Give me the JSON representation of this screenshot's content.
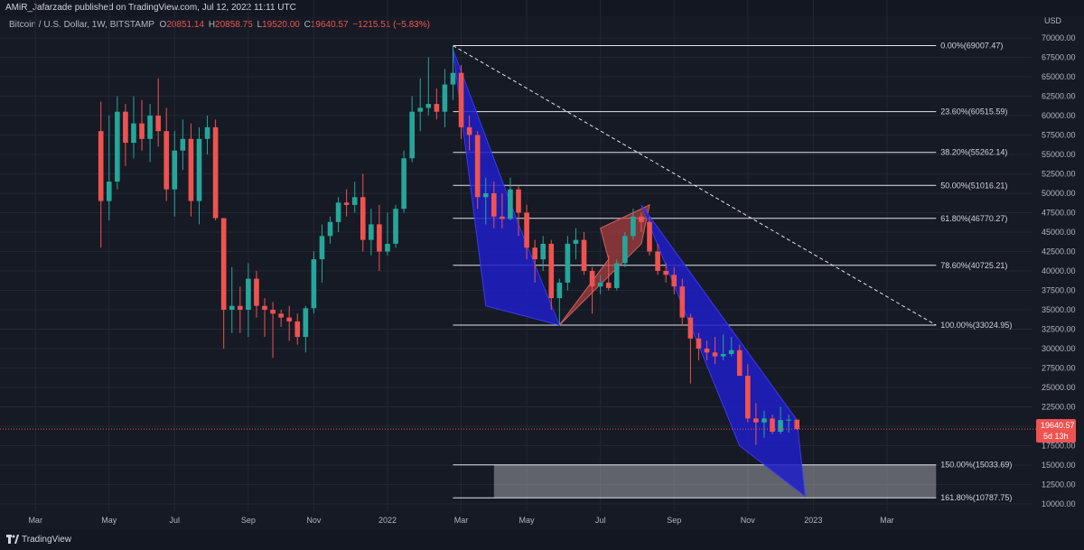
{
  "header": {
    "published_by": "AMiR_Jafarzade published on TradingView.com, Jul 12, 2022 11:11 UTC"
  },
  "symbol": {
    "name": "Bitcoin / U.S. Dollar, 1W, BITSTAMP",
    "open_label": "O",
    "open": "20851.14",
    "high_label": "H",
    "high": "20858.75",
    "low_label": "L",
    "low": "19520.00",
    "close_label": "C",
    "close": "19640.57",
    "change": "−1215.51 (−5.83%)"
  },
  "price_tag": {
    "price": "19640.57",
    "countdown": "5d 13h"
  },
  "footer": {
    "brand": "TradingView"
  },
  "colors": {
    "up": "#26a69a",
    "down": "#ef5350",
    "background": "#161a25",
    "grid": "#232733",
    "fib_line": "#e0e3eb",
    "down_arrow": "#1e1ec8",
    "up_arrow": "#b04040"
  },
  "chart_data": {
    "type": "candlestick",
    "y_unit": "USD",
    "ylim": [
      10000,
      70000
    ],
    "yticks": [
      10000,
      12500,
      15000,
      17500,
      20000,
      22500,
      25000,
      27500,
      30000,
      32500,
      35000,
      37500,
      40000,
      42500,
      45000,
      47500,
      50000,
      52500,
      55000,
      57500,
      60000,
      62500,
      65000,
      67500,
      70000
    ],
    "yticks_labels": [
      "10000.00",
      "12500.00",
      "15000.00",
      "17500.00",
      "20000.00",
      "22500.00",
      "25000.00",
      "27500.00",
      "30000.00",
      "32500.00",
      "35000.00",
      "37500.00",
      "40000.00",
      "42500.00",
      "45000.00",
      "47500.00",
      "50000.00",
      "52500.00",
      "55000.00",
      "57500.00",
      "60000.00",
      "62500.00",
      "65000.00",
      "67500.00",
      "70000.00"
    ],
    "x_ticks": [
      "Mar",
      "May",
      "Jul",
      "Sep",
      "Nov",
      "2022",
      "Mar",
      "May",
      "Jul",
      "Sep",
      "Nov",
      "2023",
      "Mar"
    ],
    "x_range_weeks": [
      -11,
      113
    ],
    "x_ticks_week": [
      -8,
      1,
      9,
      18,
      26,
      35,
      44,
      52,
      61,
      70,
      79,
      87,
      96
    ],
    "candles": [
      {
        "w": 0,
        "o": 58000,
        "h": 61800,
        "l": 43000,
        "c": 49000
      },
      {
        "w": 1,
        "o": 49000,
        "h": 60000,
        "l": 46500,
        "c": 51500
      },
      {
        "w": 2,
        "o": 51500,
        "h": 62500,
        "l": 50500,
        "c": 60500
      },
      {
        "w": 3,
        "o": 60500,
        "h": 61500,
        "l": 53500,
        "c": 56500
      },
      {
        "w": 4,
        "o": 56500,
        "h": 62500,
        "l": 54500,
        "c": 59000
      },
      {
        "w": 5,
        "o": 59000,
        "h": 62000,
        "l": 55500,
        "c": 57000
      },
      {
        "w": 6,
        "o": 57000,
        "h": 61500,
        "l": 54000,
        "c": 60000
      },
      {
        "w": 7,
        "o": 60000,
        "h": 64800,
        "l": 56000,
        "c": 58000
      },
      {
        "w": 8,
        "o": 58000,
        "h": 61000,
        "l": 49000,
        "c": 50500
      },
      {
        "w": 9,
        "o": 50500,
        "h": 58000,
        "l": 47000,
        "c": 55500
      },
      {
        "w": 10,
        "o": 55500,
        "h": 59500,
        "l": 53000,
        "c": 57000
      },
      {
        "w": 11,
        "o": 57000,
        "h": 59000,
        "l": 47000,
        "c": 49000
      },
      {
        "w": 12,
        "o": 49000,
        "h": 58500,
        "l": 46000,
        "c": 57000
      },
      {
        "w": 13,
        "o": 57000,
        "h": 60000,
        "l": 55000,
        "c": 58500
      },
      {
        "w": 14,
        "o": 58500,
        "h": 59500,
        "l": 46500,
        "c": 46800
      },
      {
        "w": 15,
        "o": 46800,
        "h": 46500,
        "l": 30000,
        "c": 35000
      },
      {
        "w": 16,
        "o": 35000,
        "h": 40500,
        "l": 32000,
        "c": 35500
      },
      {
        "w": 17,
        "o": 35500,
        "h": 38000,
        "l": 32000,
        "c": 35000
      },
      {
        "w": 18,
        "o": 35000,
        "h": 41000,
        "l": 31500,
        "c": 39000
      },
      {
        "w": 19,
        "o": 39000,
        "h": 40000,
        "l": 34000,
        "c": 35500
      },
      {
        "w": 20,
        "o": 35500,
        "h": 36500,
        "l": 31500,
        "c": 35000
      },
      {
        "w": 21,
        "o": 35000,
        "h": 36000,
        "l": 28800,
        "c": 34500
      },
      {
        "w": 22,
        "o": 34500,
        "h": 35000,
        "l": 32800,
        "c": 34000
      },
      {
        "w": 23,
        "o": 34000,
        "h": 35500,
        "l": 31000,
        "c": 33500
      },
      {
        "w": 24,
        "o": 33500,
        "h": 34500,
        "l": 30500,
        "c": 31500
      },
      {
        "w": 25,
        "o": 31500,
        "h": 35500,
        "l": 29500,
        "c": 35200
      },
      {
        "w": 26,
        "o": 35200,
        "h": 42500,
        "l": 34500,
        "c": 41500
      },
      {
        "w": 27,
        "o": 41500,
        "h": 46000,
        "l": 38500,
        "c": 44500
      },
      {
        "w": 28,
        "o": 44500,
        "h": 47000,
        "l": 43500,
        "c": 46300
      },
      {
        "w": 29,
        "o": 46300,
        "h": 49500,
        "l": 45000,
        "c": 48800
      },
      {
        "w": 30,
        "o": 48800,
        "h": 50500,
        "l": 47000,
        "c": 48500
      },
      {
        "w": 31,
        "o": 48500,
        "h": 51500,
        "l": 47500,
        "c": 49500
      },
      {
        "w": 32,
        "o": 49500,
        "h": 52500,
        "l": 42500,
        "c": 44000
      },
      {
        "w": 33,
        "o": 44000,
        "h": 48000,
        "l": 42000,
        "c": 46000
      },
      {
        "w": 34,
        "o": 46000,
        "h": 48500,
        "l": 40000,
        "c": 42500
      },
      {
        "w": 35,
        "o": 42500,
        "h": 47500,
        "l": 42000,
        "c": 43500
      },
      {
        "w": 36,
        "o": 43500,
        "h": 48500,
        "l": 43000,
        "c": 48000
      },
      {
        "w": 37,
        "o": 48000,
        "h": 55500,
        "l": 47500,
        "c": 54500
      },
      {
        "w": 38,
        "o": 54500,
        "h": 62500,
        "l": 54000,
        "c": 60500
      },
      {
        "w": 39,
        "o": 60500,
        "h": 64800,
        "l": 58000,
        "c": 61000
      },
      {
        "w": 40,
        "o": 61000,
        "h": 67500,
        "l": 60000,
        "c": 61500
      },
      {
        "w": 41,
        "o": 61500,
        "h": 63500,
        "l": 59500,
        "c": 60500
      },
      {
        "w": 42,
        "o": 60500,
        "h": 66000,
        "l": 58500,
        "c": 64000
      },
      {
        "w": 43,
        "o": 64000,
        "h": 69000,
        "l": 62000,
        "c": 65500
      },
      {
        "w": 44,
        "o": 65500,
        "h": 66500,
        "l": 57000,
        "c": 58500
      },
      {
        "w": 45,
        "o": 58500,
        "h": 60000,
        "l": 55500,
        "c": 57500
      },
      {
        "w": 46,
        "o": 57500,
        "h": 58000,
        "l": 48000,
        "c": 49500
      },
      {
        "w": 47,
        "o": 49500,
        "h": 52000,
        "l": 46000,
        "c": 50000
      },
      {
        "w": 48,
        "o": 50000,
        "h": 51500,
        "l": 45500,
        "c": 47000
      },
      {
        "w": 49,
        "o": 47000,
        "h": 50000,
        "l": 45500,
        "c": 46700
      },
      {
        "w": 50,
        "o": 46700,
        "h": 52000,
        "l": 46500,
        "c": 50500
      },
      {
        "w": 51,
        "o": 50500,
        "h": 51000,
        "l": 44500,
        "c": 47500
      },
      {
        "w": 52,
        "o": 47500,
        "h": 48500,
        "l": 41500,
        "c": 43000
      },
      {
        "w": 53,
        "o": 43000,
        "h": 44000,
        "l": 38500,
        "c": 41500
      },
      {
        "w": 54,
        "o": 41500,
        "h": 44500,
        "l": 40000,
        "c": 43500
      },
      {
        "w": 55,
        "o": 43500,
        "h": 44000,
        "l": 35000,
        "c": 36500
      },
      {
        "w": 56,
        "o": 36500,
        "h": 39000,
        "l": 33000,
        "c": 38500
      },
      {
        "w": 57,
        "o": 38500,
        "h": 44500,
        "l": 37500,
        "c": 43500
      },
      {
        "w": 58,
        "o": 43500,
        "h": 45500,
        "l": 41500,
        "c": 44000
      },
      {
        "w": 59,
        "o": 44000,
        "h": 45000,
        "l": 39500,
        "c": 40000
      },
      {
        "w": 60,
        "o": 40000,
        "h": 40500,
        "l": 34500,
        "c": 38000
      },
      {
        "w": 61,
        "o": 38000,
        "h": 39500,
        "l": 37000,
        "c": 38500
      },
      {
        "w": 62,
        "o": 38500,
        "h": 42000,
        "l": 37500,
        "c": 37800
      },
      {
        "w": 63,
        "o": 37800,
        "h": 41500,
        "l": 37500,
        "c": 41000
      },
      {
        "w": 64,
        "o": 41000,
        "h": 45000,
        "l": 40500,
        "c": 44500
      },
      {
        "w": 65,
        "o": 44500,
        "h": 48000,
        "l": 44000,
        "c": 47000
      },
      {
        "w": 66,
        "o": 47000,
        "h": 47500,
        "l": 45000,
        "c": 46300
      },
      {
        "w": 67,
        "o": 46300,
        "h": 47000,
        "l": 42000,
        "c": 42500
      },
      {
        "w": 68,
        "o": 42500,
        "h": 43500,
        "l": 39500,
        "c": 40000
      },
      {
        "w": 69,
        "o": 40000,
        "h": 41000,
        "l": 38500,
        "c": 39500
      },
      {
        "w": 70,
        "o": 39500,
        "h": 40500,
        "l": 37000,
        "c": 38000
      },
      {
        "w": 71,
        "o": 38000,
        "h": 39000,
        "l": 33000,
        "c": 34000
      },
      {
        "w": 72,
        "o": 34000,
        "h": 34500,
        "l": 25500,
        "c": 31300
      },
      {
        "w": 73,
        "o": 31300,
        "h": 32000,
        "l": 28500,
        "c": 30000
      },
      {
        "w": 74,
        "o": 30000,
        "h": 31000,
        "l": 28500,
        "c": 29500
      },
      {
        "w": 75,
        "o": 29500,
        "h": 31500,
        "l": 28000,
        "c": 29000
      },
      {
        "w": 76,
        "o": 29000,
        "h": 31800,
        "l": 28500,
        "c": 29300
      },
      {
        "w": 77,
        "o": 29300,
        "h": 31500,
        "l": 29000,
        "c": 29800
      },
      {
        "w": 78,
        "o": 29800,
        "h": 30500,
        "l": 26500,
        "c": 26500
      },
      {
        "w": 79,
        "o": 26500,
        "h": 28000,
        "l": 20500,
        "c": 21000
      },
      {
        "w": 80,
        "o": 21000,
        "h": 23000,
        "l": 17600,
        "c": 20500
      },
      {
        "w": 81,
        "o": 20500,
        "h": 22000,
        "l": 18500,
        "c": 21000
      },
      {
        "w": 82,
        "o": 21000,
        "h": 21500,
        "l": 19000,
        "c": 19300
      },
      {
        "w": 83,
        "o": 19300,
        "h": 22500,
        "l": 19000,
        "c": 20800
      },
      {
        "w": 84,
        "o": 20800,
        "h": 21500,
        "l": 19200,
        "c": 20850
      },
      {
        "w": 85,
        "o": 20851.14,
        "h": 20858.75,
        "l": 19520,
        "c": 19640.57
      }
    ],
    "fib_levels": [
      {
        "label": "0.00%(69007.47)",
        "price": 69007.47
      },
      {
        "label": "23.60%(60515.59)",
        "price": 60515.59
      },
      {
        "label": "38.20%(55262.14)",
        "price": 55262.14
      },
      {
        "label": "50.00%(51016.21)",
        "price": 51016.21
      },
      {
        "label": "61.80%(46770.27)",
        "price": 46770.27
      },
      {
        "label": "78.60%(40725.21)",
        "price": 40725.21
      },
      {
        "label": "100.00%(33024.95)",
        "price": 33024.95
      },
      {
        "label": "150.00%(15033.69)",
        "price": 15033.69
      },
      {
        "label": "161.80%(10787.75)",
        "price": 10787.75
      }
    ],
    "fib_range_weeks": [
      43,
      102
    ],
    "target_zone": {
      "from_week": 48,
      "to_week": 102,
      "low": 10787.75,
      "high": 15033.69
    },
    "trend_line": {
      "start": {
        "w": 43,
        "p": 69007.47
      },
      "end": {
        "w": 102,
        "p": 33024.95
      }
    },
    "arrows": [
      {
        "kind": "down",
        "points": [
          [
            43,
            68500
          ],
          [
            51,
            46000
          ],
          [
            56,
            33024.95
          ],
          [
            47,
            35500
          ]
        ]
      },
      {
        "kind": "up",
        "points": [
          [
            56,
            33024.95
          ],
          [
            62,
            41500
          ],
          [
            61,
            45500
          ],
          [
            67,
            48500
          ],
          [
            66,
            43500
          ]
        ]
      },
      {
        "kind": "down",
        "points": [
          [
            66,
            48500
          ],
          [
            85,
            20800
          ],
          [
            86,
            11000
          ],
          [
            78,
            17500
          ]
        ]
      }
    ],
    "last_price": 19640.57
  }
}
